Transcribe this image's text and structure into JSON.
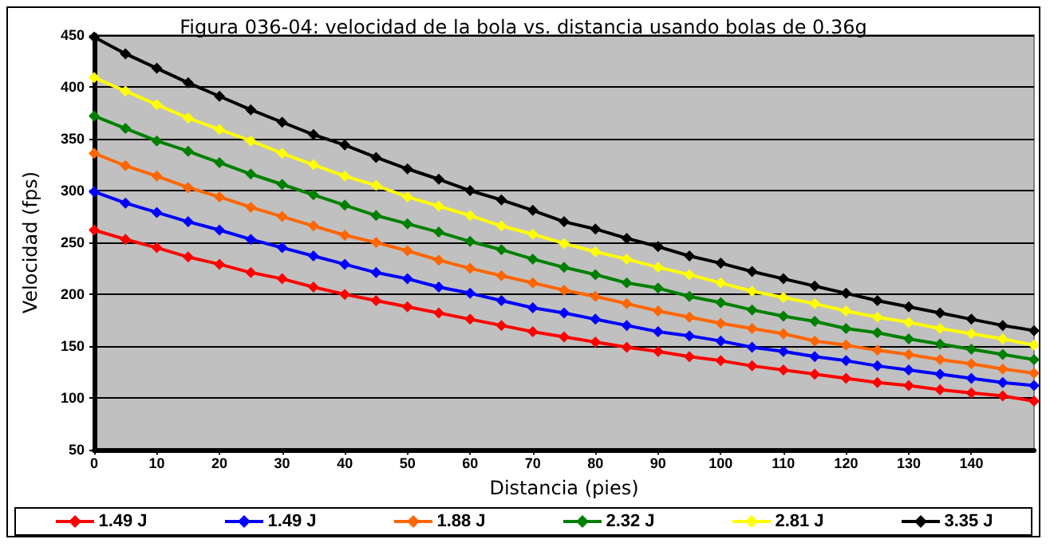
{
  "chart_data": {
    "type": "line",
    "title": "Figura 036-04: velocidad de la bola vs. distancia usando bolas de 0.36g",
    "xlabel": "Distancia (pies)",
    "ylabel": "Velocidad (fps)",
    "x": [
      0,
      5,
      10,
      15,
      20,
      25,
      30,
      35,
      40,
      45,
      50,
      55,
      60,
      65,
      70,
      75,
      80,
      85,
      90,
      95,
      100,
      105,
      110,
      115,
      120,
      125,
      130,
      135,
      140,
      145,
      150
    ],
    "series": [
      {
        "name": "1.49 J",
        "color": "#ff0000",
        "values": [
          262,
          253,
          245,
          236,
          229,
          221,
          215,
          207,
          200,
          194,
          188,
          182,
          176,
          170,
          164,
          159,
          154,
          149,
          145,
          140,
          136,
          131,
          127,
          123,
          119,
          115,
          112,
          108,
          105,
          102,
          97
        ]
      },
      {
        "name": "1.49 J",
        "color": "#0000ff",
        "values": [
          299,
          288,
          279,
          270,
          262,
          253,
          245,
          237,
          229,
          221,
          215,
          207,
          201,
          194,
          187,
          182,
          176,
          170,
          164,
          160,
          155,
          149,
          145,
          140,
          136,
          131,
          127,
          123,
          119,
          115,
          112
        ]
      },
      {
        "name": "1.88 J",
        "color": "#ff6600",
        "values": [
          336,
          324,
          314,
          303,
          294,
          284,
          275,
          266,
          257,
          250,
          242,
          233,
          225,
          218,
          211,
          204,
          198,
          191,
          184,
          178,
          172,
          167,
          162,
          155,
          151,
          146,
          142,
          137,
          133,
          128,
          124
        ]
      },
      {
        "name": "2.32 J",
        "color": "#008000",
        "values": [
          372,
          360,
          348,
          338,
          327,
          316,
          306,
          296,
          286,
          276,
          268,
          260,
          251,
          243,
          234,
          226,
          219,
          211,
          206,
          198,
          192,
          185,
          179,
          174,
          167,
          163,
          157,
          152,
          147,
          142,
          137
        ]
      },
      {
        "name": "2.81 J",
        "color": "#ffff00",
        "values": [
          409,
          396,
          383,
          370,
          359,
          348,
          336,
          325,
          314,
          305,
          294,
          285,
          276,
          266,
          258,
          249,
          241,
          234,
          226,
          219,
          211,
          203,
          197,
          191,
          184,
          178,
          173,
          167,
          162,
          157,
          151
        ]
      },
      {
        "name": "3.35 J",
        "color": "#000000",
        "values": [
          448,
          432,
          418,
          404,
          391,
          378,
          366,
          354,
          344,
          332,
          321,
          311,
          300,
          291,
          281,
          270,
          263,
          254,
          246,
          237,
          230,
          222,
          215,
          208,
          201,
          194,
          188,
          182,
          176,
          170,
          165
        ]
      }
    ],
    "xlim": [
      0,
      150
    ],
    "xticks": [
      0,
      10,
      20,
      30,
      40,
      50,
      60,
      70,
      80,
      90,
      100,
      110,
      120,
      130,
      140
    ],
    "ylim": [
      50,
      450
    ],
    "yticks": [
      50,
      100,
      150,
      200,
      250,
      300,
      350,
      400,
      450
    ],
    "grid": "y",
    "legend": "bottom",
    "marker": "diamond",
    "line_style": "solid"
  }
}
